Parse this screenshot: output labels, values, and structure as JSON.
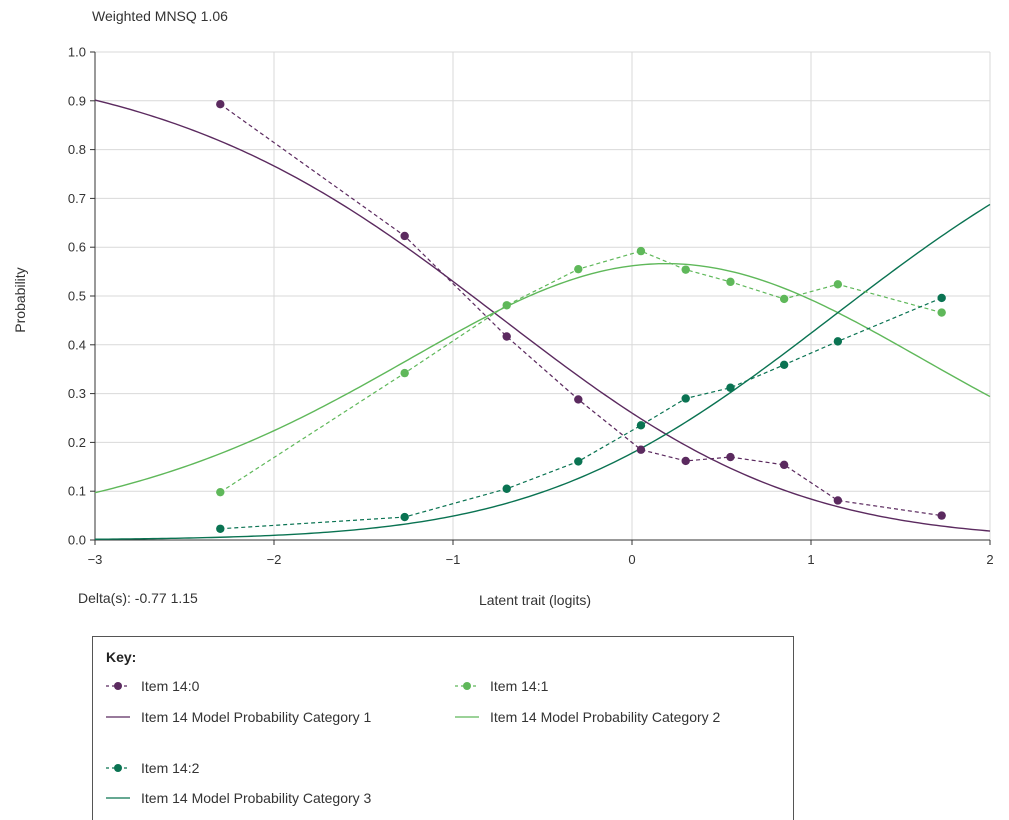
{
  "header": {
    "title": "Weighted MNSQ  1.06"
  },
  "footer": {
    "delta": "Delta(s): -0.77  1.15"
  },
  "colors": {
    "cat1": "#5b2a5f",
    "cat2": "#5fb85a",
    "cat3": "#0a7352",
    "grid": "#d9d9d9",
    "axis": "#333333"
  },
  "chart_data": {
    "type": "line",
    "title": "Weighted MNSQ  1.06",
    "xlabel": "Latent trait (logits)",
    "ylabel": "Probability",
    "xlim": [
      -3,
      2
    ],
    "ylim": [
      0,
      1
    ],
    "x_ticks": [
      -3,
      -2,
      -1,
      0,
      1,
      2
    ],
    "x_tick_labels": [
      "−3",
      "−2",
      "−1",
      "0",
      "1",
      "2"
    ],
    "y_ticks": [
      0,
      0.1,
      0.2,
      0.3,
      0.4,
      0.5,
      0.6,
      0.7,
      0.8,
      0.9,
      1.0
    ],
    "y_tick_labels": [
      "0.0",
      "0.1",
      "0.2",
      "0.3",
      "0.4",
      "0.5",
      "0.6",
      "0.7",
      "0.8",
      "0.9",
      "1.0"
    ],
    "grid": true,
    "deltas": [
      -0.77,
      1.15
    ],
    "observed": [
      {
        "name": "Item 14:0",
        "color": "#5b2a5f",
        "x": [
          -2.3,
          -1.27,
          -0.7,
          -0.3,
          0.05,
          0.3,
          0.55,
          0.85,
          1.15,
          1.73
        ],
        "y": [
          0.893,
          0.623,
          0.417,
          0.288,
          0.185,
          0.162,
          0.17,
          0.154,
          0.081,
          0.05
        ]
      },
      {
        "name": "Item 14:1",
        "color": "#5fb85a",
        "x": [
          -2.3,
          -1.27,
          -0.7,
          -0.3,
          0.05,
          0.3,
          0.55,
          0.85,
          1.15,
          1.73
        ],
        "y": [
          0.098,
          0.342,
          0.481,
          0.555,
          0.592,
          0.554,
          0.529,
          0.494,
          0.524,
          0.466
        ]
      },
      {
        "name": "Item 14:2",
        "color": "#0a7352",
        "x": [
          -2.3,
          -1.27,
          -0.7,
          -0.3,
          0.05,
          0.3,
          0.55,
          0.85,
          1.15,
          1.73
        ],
        "y": [
          0.023,
          0.047,
          0.105,
          0.161,
          0.235,
          0.29,
          0.312,
          0.359,
          0.407,
          0.496
        ]
      }
    ],
    "model": [
      {
        "name": "Item 14 Model Probability Category 1",
        "color": "#5b2a5f",
        "category": 1
      },
      {
        "name": "Item 14 Model Probability Category 2",
        "color": "#5fb85a",
        "category": 2
      },
      {
        "name": "Item 14 Model Probability Category 3",
        "color": "#0a7352",
        "category": 3
      }
    ]
  },
  "key": {
    "title": "Key:",
    "items": [
      {
        "label": "Item 14:0",
        "style": "dashed-marker",
        "color": "#5b2a5f"
      },
      {
        "label": "Item 14:1",
        "style": "dashed-marker",
        "color": "#5fb85a"
      },
      {
        "label": "Item 14 Model Probability Category 1",
        "style": "solid",
        "color": "#5b2a5f"
      },
      {
        "label": "Item 14 Model Probability Category 2",
        "style": "solid",
        "color": "#5fb85a"
      },
      {
        "label": "Item 14:2",
        "style": "dashed-marker",
        "color": "#0a7352"
      },
      {
        "label": "Item 14 Model Probability Category 3",
        "style": "solid",
        "color": "#0a7352"
      }
    ]
  }
}
